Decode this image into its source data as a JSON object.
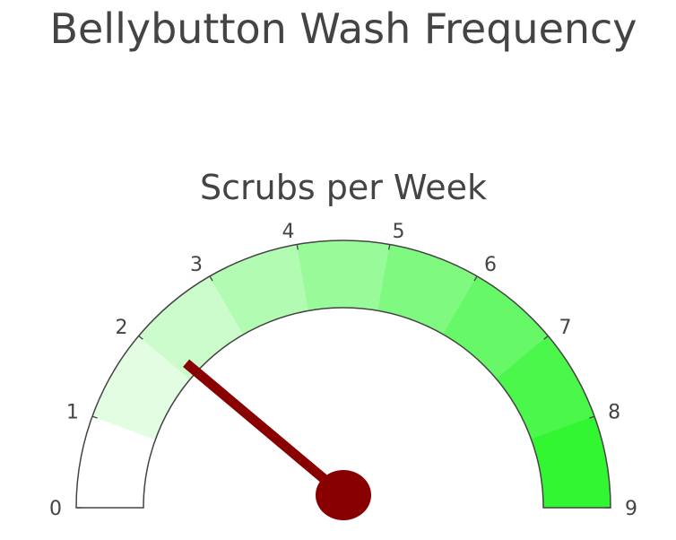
{
  "chart_data": {
    "type": "gauge",
    "title": "Bellybutton Wash Frequency",
    "subtitle": "Scrubs per Week",
    "range": [
      0,
      9
    ],
    "value": 2,
    "ticks": [
      "0",
      "1",
      "2",
      "3",
      "4",
      "5",
      "6",
      "7",
      "8",
      "9"
    ],
    "steps": [
      {
        "range": [
          0,
          1
        ],
        "color": "#ffffff"
      },
      {
        "range": [
          1,
          2
        ],
        "color": "#e2fde2"
      },
      {
        "range": [
          2,
          3
        ],
        "color": "#ccfccc"
      },
      {
        "range": [
          3,
          4
        ],
        "color": "#b2fbb2"
      },
      {
        "range": [
          4,
          5
        ],
        "color": "#99fa99"
      },
      {
        "range": [
          5,
          6
        ],
        "color": "#80f980"
      },
      {
        "range": [
          6,
          7
        ],
        "color": "#66f866"
      },
      {
        "range": [
          7,
          8
        ],
        "color": "#4cf74c"
      },
      {
        "range": [
          8,
          9
        ],
        "color": "#33f633"
      }
    ],
    "needle_color": "#880000",
    "outline_color": "#444444"
  }
}
